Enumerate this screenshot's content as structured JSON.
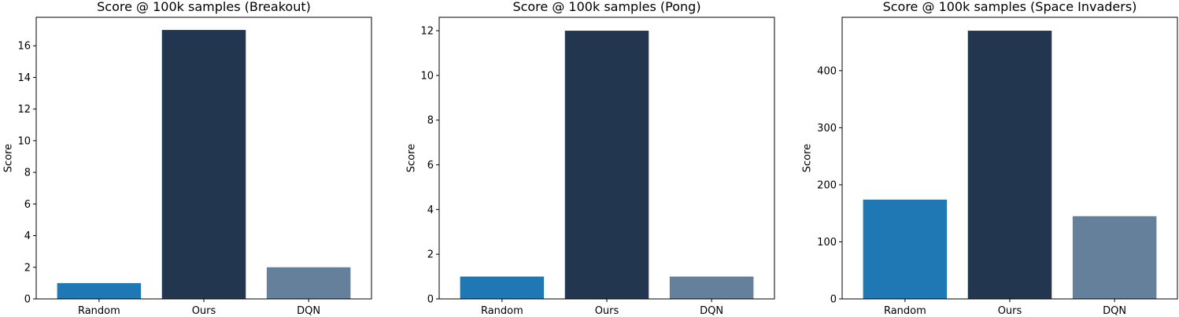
{
  "chart_data": [
    {
      "type": "bar",
      "title": "Score @ 100k samples (Breakout)",
      "xlabel": "",
      "ylabel": "Score",
      "categories": [
        "Random",
        "Ours",
        "DQN"
      ],
      "values": [
        1,
        17,
        2
      ],
      "colors": [
        "#1f77b4",
        "#22364f",
        "#64809a"
      ],
      "ylim": [
        0,
        17.8
      ],
      "yticks": [
        0,
        2,
        4,
        6,
        8,
        10,
        12,
        14,
        16
      ]
    },
    {
      "type": "bar",
      "title": "Score @ 100k samples (Pong)",
      "xlabel": "",
      "ylabel": "Score",
      "categories": [
        "Random",
        "Ours",
        "DQN"
      ],
      "values": [
        1,
        12,
        1
      ],
      "colors": [
        "#1f77b4",
        "#22364f",
        "#64809a"
      ],
      "ylim": [
        0,
        12.6
      ],
      "yticks": [
        0,
        2,
        4,
        6,
        8,
        10,
        12
      ]
    },
    {
      "type": "bar",
      "title": "Score @ 100k samples (Space Invaders)",
      "xlabel": "",
      "ylabel": "Score",
      "categories": [
        "Random",
        "Ours",
        "DQN"
      ],
      "values": [
        174,
        470,
        145
      ],
      "colors": [
        "#1f77b4",
        "#22364f",
        "#64809a"
      ],
      "ylim": [
        0,
        493.5
      ],
      "yticks": [
        0,
        100,
        200,
        300,
        400
      ]
    }
  ]
}
